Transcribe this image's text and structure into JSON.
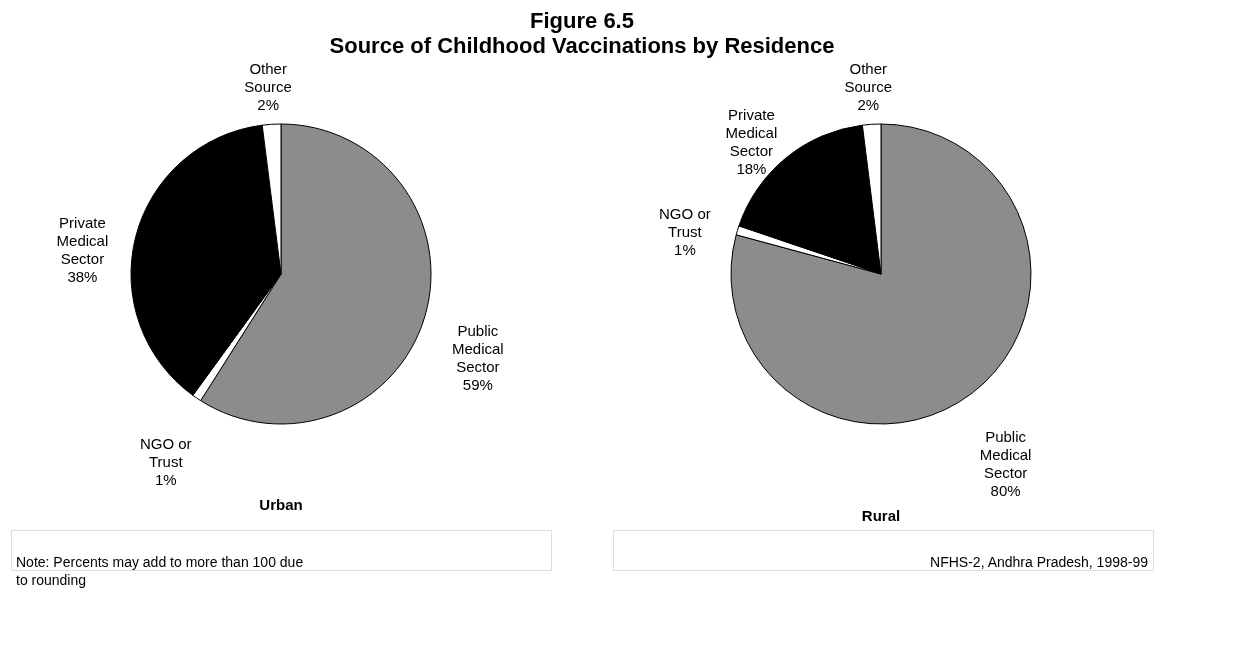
{
  "chart_data": [
    {
      "type": "pie",
      "title": "Figure 6.5",
      "subtitle": "Source of Childhood Vaccinations by Residence",
      "xlabel": "Urban",
      "categories": [
        "Public Medical Sector",
        "NGO or Trust",
        "Private Medical Sector",
        "Other Source"
      ],
      "values": [
        59,
        1,
        38,
        2
      ],
      "value_labels": [
        "59%",
        "1%",
        "38%",
        "2%"
      ],
      "colors": [
        "#8c8c8c",
        "#ffffff",
        "#000000",
        "#ffffff"
      ],
      "annotations": [
        "Note: Percents may add to more than 100 due to rounding"
      ]
    },
    {
      "type": "pie",
      "xlabel": "Rural",
      "categories": [
        "Public Medical Sector",
        "NGO or Trust",
        "Private Medical Sector",
        "Other Source"
      ],
      "values": [
        80,
        1,
        18,
        2
      ],
      "value_labels": [
        "80%",
        "1%",
        "18%",
        "2%"
      ],
      "colors": [
        "#8c8c8c",
        "#ffffff",
        "#000000",
        "#ffffff"
      ],
      "annotations": [
        "NFHS-2, Andhra Pradesh, 1998-99"
      ]
    }
  ]
}
